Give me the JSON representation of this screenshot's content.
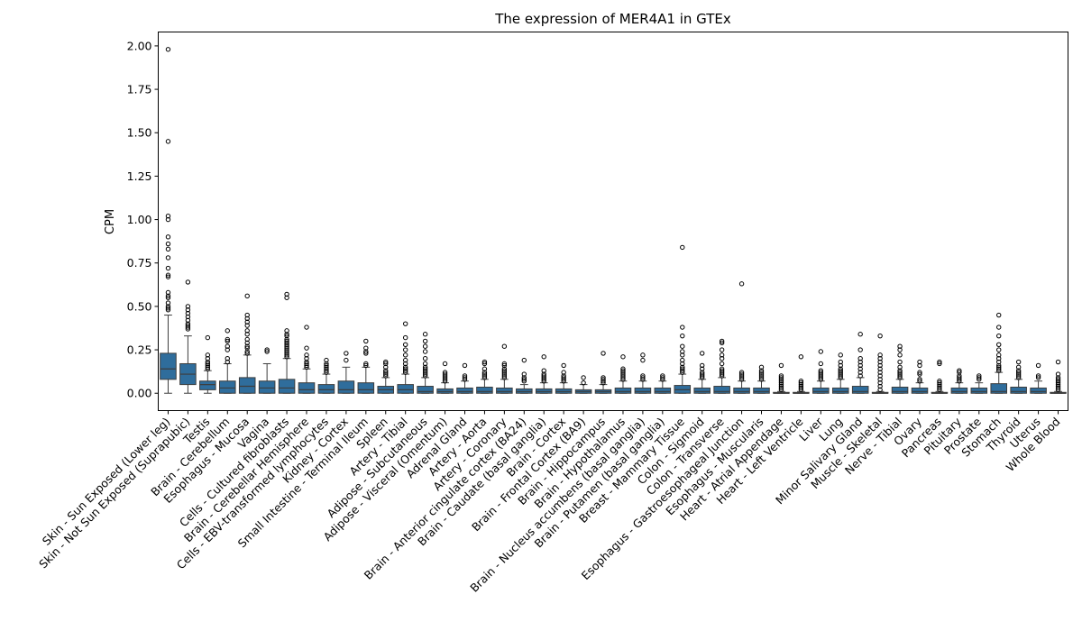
{
  "chart_data": {
    "type": "box",
    "title": "The expression of MER4A1 in GTEx",
    "xlabel": "",
    "ylabel": "CPM",
    "ylim": [
      -0.1,
      2.08
    ],
    "yticks": [
      0.0,
      0.25,
      0.5,
      0.75,
      1.0,
      1.25,
      1.5,
      1.75,
      2.0
    ],
    "ytick_labels": [
      "0.00",
      "0.25",
      "0.50",
      "0.75",
      "1.00",
      "1.25",
      "1.50",
      "1.75",
      "2.00"
    ],
    "grid": false,
    "box_color": "#2f6d9c",
    "categories": [
      {
        "name": "Skin - Sun Exposed (Lower leg)",
        "whisker_low": 0.0,
        "q1": 0.08,
        "median": 0.14,
        "q3": 0.23,
        "whisker_high": 0.45,
        "outliers": [
          1.98,
          1.45,
          1.02,
          1.0,
          0.9,
          0.86,
          0.83,
          0.78,
          0.72,
          0.68,
          0.67,
          0.58,
          0.56,
          0.55,
          0.52,
          0.5,
          0.49,
          0.48
        ]
      },
      {
        "name": "Skin - Not Sun Exposed (Suprapubic)",
        "whisker_low": 0.0,
        "q1": 0.05,
        "median": 0.11,
        "q3": 0.17,
        "whisker_high": 0.33,
        "outliers": [
          0.64,
          0.5,
          0.48,
          0.46,
          0.44,
          0.42,
          0.4,
          0.39,
          0.38,
          0.37
        ]
      },
      {
        "name": "Testis",
        "whisker_low": 0.0,
        "q1": 0.02,
        "median": 0.05,
        "q3": 0.07,
        "whisker_high": 0.13,
        "outliers": [
          0.32,
          0.22,
          0.2,
          0.18,
          0.17,
          0.16,
          0.15,
          0.14
        ]
      },
      {
        "name": "Brain - Cerebellum",
        "whisker_low": 0.0,
        "q1": 0.0,
        "median": 0.03,
        "q3": 0.07,
        "whisker_high": 0.17,
        "outliers": [
          0.36,
          0.31,
          0.3,
          0.27,
          0.25,
          0.2,
          0.18
        ]
      },
      {
        "name": "Esophagus - Mucosa",
        "whisker_low": 0.0,
        "q1": 0.0,
        "median": 0.04,
        "q3": 0.09,
        "whisker_high": 0.22,
        "outliers": [
          0.56,
          0.45,
          0.43,
          0.41,
          0.39,
          0.36,
          0.34,
          0.31,
          0.29,
          0.27,
          0.26,
          0.24,
          0.23
        ]
      },
      {
        "name": "Vagina",
        "whisker_low": 0.0,
        "q1": 0.0,
        "median": 0.03,
        "q3": 0.07,
        "whisker_high": 0.17,
        "outliers": [
          0.25,
          0.24
        ]
      },
      {
        "name": "Cells - Cultured fibroblasts",
        "whisker_low": 0.0,
        "q1": 0.0,
        "median": 0.03,
        "q3": 0.08,
        "whisker_high": 0.2,
        "outliers": [
          0.57,
          0.55,
          0.36,
          0.34,
          0.33,
          0.31,
          0.3,
          0.29,
          0.28,
          0.27,
          0.26,
          0.25,
          0.24,
          0.23,
          0.22,
          0.21
        ]
      },
      {
        "name": "Brain - Cerebellar Hemisphere",
        "whisker_low": 0.0,
        "q1": 0.0,
        "median": 0.02,
        "q3": 0.06,
        "whisker_high": 0.14,
        "outliers": [
          0.38,
          0.26,
          0.22,
          0.2,
          0.18,
          0.17,
          0.16,
          0.15
        ]
      },
      {
        "name": "Cells - EBV-transformed lymphocytes",
        "whisker_low": 0.0,
        "q1": 0.0,
        "median": 0.02,
        "q3": 0.05,
        "whisker_high": 0.11,
        "outliers": [
          0.19,
          0.17,
          0.16,
          0.15,
          0.14,
          0.13,
          0.12
        ]
      },
      {
        "name": "Kidney - Cortex",
        "whisker_low": 0.0,
        "q1": 0.0,
        "median": 0.02,
        "q3": 0.07,
        "whisker_high": 0.15,
        "outliers": [
          0.23,
          0.19
        ]
      },
      {
        "name": "Small Intestine - Terminal Ileum",
        "whisker_low": 0.0,
        "q1": 0.0,
        "median": 0.02,
        "q3": 0.06,
        "whisker_high": 0.15,
        "outliers": [
          0.3,
          0.26,
          0.24,
          0.23,
          0.17,
          0.16
        ]
      },
      {
        "name": "Spleen",
        "whisker_low": 0.0,
        "q1": 0.0,
        "median": 0.02,
        "q3": 0.04,
        "whisker_high": 0.09,
        "outliers": [
          0.18,
          0.17,
          0.15,
          0.13,
          0.12,
          0.11,
          0.1
        ]
      },
      {
        "name": "Artery - Tibial",
        "whisker_low": 0.0,
        "q1": 0.0,
        "median": 0.02,
        "q3": 0.05,
        "whisker_high": 0.11,
        "outliers": [
          0.4,
          0.32,
          0.28,
          0.25,
          0.22,
          0.19,
          0.17,
          0.15,
          0.14,
          0.13,
          0.12
        ]
      },
      {
        "name": "Adipose - Subcutaneous",
        "whisker_low": 0.0,
        "q1": 0.0,
        "median": 0.01,
        "q3": 0.04,
        "whisker_high": 0.09,
        "outliers": [
          0.34,
          0.3,
          0.27,
          0.24,
          0.2,
          0.17,
          0.15,
          0.14,
          0.13,
          0.12,
          0.11,
          0.1
        ]
      },
      {
        "name": "Adipose - Visceral (Omentum)",
        "whisker_low": 0.0,
        "q1": 0.0,
        "median": 0.01,
        "q3": 0.025,
        "whisker_high": 0.06,
        "outliers": [
          0.17,
          0.12,
          0.11,
          0.1,
          0.09,
          0.08,
          0.07
        ]
      },
      {
        "name": "Adrenal Gland",
        "whisker_low": 0.0,
        "q1": 0.0,
        "median": 0.01,
        "q3": 0.03,
        "whisker_high": 0.07,
        "outliers": [
          0.16,
          0.1,
          0.09,
          0.08
        ]
      },
      {
        "name": "Artery - Aorta",
        "whisker_low": 0.0,
        "q1": 0.0,
        "median": 0.01,
        "q3": 0.035,
        "whisker_high": 0.08,
        "outliers": [
          0.18,
          0.17,
          0.14,
          0.12,
          0.11,
          0.1,
          0.09
        ]
      },
      {
        "name": "Artery - Coronary",
        "whisker_low": 0.0,
        "q1": 0.0,
        "median": 0.01,
        "q3": 0.03,
        "whisker_high": 0.08,
        "outliers": [
          0.27,
          0.17,
          0.16,
          0.14,
          0.13,
          0.12,
          0.11,
          0.1,
          0.09
        ]
      },
      {
        "name": "Brain - Anterior cingulate cortex (BA24)",
        "whisker_low": 0.0,
        "q1": 0.0,
        "median": 0.01,
        "q3": 0.025,
        "whisker_high": 0.05,
        "outliers": [
          0.19,
          0.11,
          0.09,
          0.08,
          0.07
        ]
      },
      {
        "name": "Brain - Caudate (basal ganglia)",
        "whisker_low": 0.0,
        "q1": 0.0,
        "median": 0.01,
        "q3": 0.025,
        "whisker_high": 0.06,
        "outliers": [
          0.21,
          0.13,
          0.11,
          0.1,
          0.09,
          0.08,
          0.07
        ]
      },
      {
        "name": "Brain - Cortex",
        "whisker_low": 0.0,
        "q1": 0.0,
        "median": 0.01,
        "q3": 0.025,
        "whisker_high": 0.06,
        "outliers": [
          0.16,
          0.12,
          0.1,
          0.09,
          0.08,
          0.07
        ]
      },
      {
        "name": "Brain - Frontal Cortex (BA9)",
        "whisker_low": 0.0,
        "q1": 0.0,
        "median": 0.01,
        "q3": 0.02,
        "whisker_high": 0.05,
        "outliers": [
          0.09,
          0.06
        ]
      },
      {
        "name": "Brain - Hippocampus",
        "whisker_low": 0.0,
        "q1": 0.0,
        "median": 0.01,
        "q3": 0.02,
        "whisker_high": 0.05,
        "outliers": [
          0.23,
          0.09,
          0.08,
          0.07,
          0.06
        ]
      },
      {
        "name": "Brain - Hypothalamus",
        "whisker_low": 0.0,
        "q1": 0.0,
        "median": 0.01,
        "q3": 0.03,
        "whisker_high": 0.07,
        "outliers": [
          0.21,
          0.14,
          0.13,
          0.12,
          0.11,
          0.1,
          0.09,
          0.08
        ]
      },
      {
        "name": "Brain - Nucleus accumbens (basal ganglia)",
        "whisker_low": 0.0,
        "q1": 0.0,
        "median": 0.01,
        "q3": 0.03,
        "whisker_high": 0.07,
        "outliers": [
          0.22,
          0.19,
          0.1,
          0.09,
          0.08
        ]
      },
      {
        "name": "Brain - Putamen (basal ganglia)",
        "whisker_low": 0.0,
        "q1": 0.0,
        "median": 0.01,
        "q3": 0.03,
        "whisker_high": 0.07,
        "outliers": [
          0.1,
          0.09,
          0.08
        ]
      },
      {
        "name": "Breast - Mammary Tissue",
        "whisker_low": 0.0,
        "q1": 0.0,
        "median": 0.02,
        "q3": 0.045,
        "whisker_high": 0.11,
        "outliers": [
          0.84,
          0.38,
          0.33,
          0.27,
          0.24,
          0.22,
          0.19,
          0.17,
          0.15,
          0.14,
          0.13,
          0.12
        ]
      },
      {
        "name": "Colon - Sigmoid",
        "whisker_low": 0.0,
        "q1": 0.0,
        "median": 0.01,
        "q3": 0.03,
        "whisker_high": 0.08,
        "outliers": [
          0.23,
          0.16,
          0.14,
          0.12,
          0.11,
          0.1,
          0.09
        ]
      },
      {
        "name": "Colon - Transverse",
        "whisker_low": 0.0,
        "q1": 0.0,
        "median": 0.01,
        "q3": 0.04,
        "whisker_high": 0.09,
        "outliers": [
          0.3,
          0.29,
          0.25,
          0.22,
          0.2,
          0.17,
          0.14,
          0.13,
          0.12,
          0.11,
          0.1
        ]
      },
      {
        "name": "Esophagus - Gastroesophageal Junction",
        "whisker_low": 0.0,
        "q1": 0.0,
        "median": 0.01,
        "q3": 0.03,
        "whisker_high": 0.07,
        "outliers": [
          0.63,
          0.12,
          0.11,
          0.1,
          0.09,
          0.08
        ]
      },
      {
        "name": "Esophagus - Muscularis",
        "whisker_low": 0.0,
        "q1": 0.0,
        "median": 0.01,
        "q3": 0.03,
        "whisker_high": 0.07,
        "outliers": [
          0.15,
          0.13,
          0.12,
          0.11,
          0.1,
          0.09,
          0.08
        ]
      },
      {
        "name": "Heart - Atrial Appendage",
        "whisker_low": 0.0,
        "q1": 0.0,
        "median": 0.0,
        "q3": 0.005,
        "whisker_high": 0.01,
        "outliers": [
          0.16,
          0.1,
          0.09,
          0.08,
          0.07,
          0.06,
          0.05,
          0.04,
          0.03,
          0.02
        ]
      },
      {
        "name": "Heart - Left Ventricle",
        "whisker_low": 0.0,
        "q1": 0.0,
        "median": 0.0,
        "q3": 0.005,
        "whisker_high": 0.01,
        "outliers": [
          0.21,
          0.07,
          0.06,
          0.05,
          0.04,
          0.03,
          0.02
        ]
      },
      {
        "name": "Liver",
        "whisker_low": 0.0,
        "q1": 0.0,
        "median": 0.01,
        "q3": 0.03,
        "whisker_high": 0.07,
        "outliers": [
          0.24,
          0.17,
          0.13,
          0.12,
          0.11,
          0.1,
          0.09,
          0.08
        ]
      },
      {
        "name": "Lung",
        "whisker_low": 0.0,
        "q1": 0.0,
        "median": 0.01,
        "q3": 0.03,
        "whisker_high": 0.08,
        "outliers": [
          0.22,
          0.18,
          0.16,
          0.14,
          0.13,
          0.12,
          0.11,
          0.1,
          0.09
        ]
      },
      {
        "name": "Minor Salivary Gland",
        "whisker_low": 0.0,
        "q1": 0.0,
        "median": 0.01,
        "q3": 0.04,
        "whisker_high": 0.09,
        "outliers": [
          0.34,
          0.25,
          0.2,
          0.18,
          0.16,
          0.14,
          0.12,
          0.1
        ]
      },
      {
        "name": "Muscle - Skeletal",
        "whisker_low": 0.0,
        "q1": 0.0,
        "median": 0.0,
        "q3": 0.005,
        "whisker_high": 0.01,
        "outliers": [
          0.33,
          0.22,
          0.2,
          0.18,
          0.16,
          0.14,
          0.12,
          0.1,
          0.08,
          0.06,
          0.04,
          0.02
        ]
      },
      {
        "name": "Nerve - Tibial",
        "whisker_low": 0.0,
        "q1": 0.0,
        "median": 0.01,
        "q3": 0.035,
        "whisker_high": 0.08,
        "outliers": [
          0.27,
          0.25,
          0.22,
          0.18,
          0.15,
          0.13,
          0.12,
          0.11,
          0.1,
          0.09
        ]
      },
      {
        "name": "Ovary",
        "whisker_low": 0.0,
        "q1": 0.0,
        "median": 0.01,
        "q3": 0.03,
        "whisker_high": 0.06,
        "outliers": [
          0.18,
          0.16,
          0.12,
          0.11,
          0.08,
          0.07
        ]
      },
      {
        "name": "Pancreas",
        "whisker_low": 0.0,
        "q1": 0.0,
        "median": 0.0,
        "q3": 0.005,
        "whisker_high": 0.01,
        "outliers": [
          0.18,
          0.17,
          0.07,
          0.06,
          0.05,
          0.04,
          0.03,
          0.02
        ]
      },
      {
        "name": "Pituitary",
        "whisker_low": 0.0,
        "q1": 0.0,
        "median": 0.01,
        "q3": 0.03,
        "whisker_high": 0.06,
        "outliers": [
          0.13,
          0.12,
          0.1,
          0.09,
          0.08,
          0.07
        ]
      },
      {
        "name": "Prostate",
        "whisker_low": 0.0,
        "q1": 0.0,
        "median": 0.01,
        "q3": 0.03,
        "whisker_high": 0.06,
        "outliers": [
          0.1,
          0.09,
          0.08
        ]
      },
      {
        "name": "Stomach",
        "whisker_low": 0.0,
        "q1": 0.0,
        "median": 0.01,
        "q3": 0.055,
        "whisker_high": 0.12,
        "outliers": [
          0.45,
          0.38,
          0.33,
          0.28,
          0.25,
          0.22,
          0.2,
          0.18,
          0.16,
          0.15,
          0.14,
          0.13
        ]
      },
      {
        "name": "Thyroid",
        "whisker_low": 0.0,
        "q1": 0.0,
        "median": 0.01,
        "q3": 0.035,
        "whisker_high": 0.08,
        "outliers": [
          0.18,
          0.15,
          0.13,
          0.12,
          0.11,
          0.1,
          0.09
        ]
      },
      {
        "name": "Uterus",
        "whisker_low": 0.0,
        "q1": 0.0,
        "median": 0.01,
        "q3": 0.03,
        "whisker_high": 0.07,
        "outliers": [
          0.16,
          0.1,
          0.09
        ]
      },
      {
        "name": "Whole Blood",
        "whisker_low": 0.0,
        "q1": 0.0,
        "median": 0.0,
        "q3": 0.005,
        "whisker_high": 0.01,
        "outliers": [
          0.18,
          0.11,
          0.09,
          0.08,
          0.07,
          0.06,
          0.05,
          0.04,
          0.03,
          0.02
        ]
      }
    ]
  }
}
